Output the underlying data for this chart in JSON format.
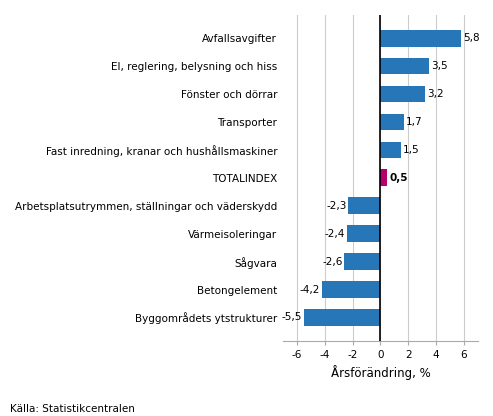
{
  "categories": [
    "Byggområdets ytstrukturer",
    "Betongelement",
    "Sågvara",
    "Värmeisoleringar",
    "Arbetsplatsutrymmen, ställningar och väderskydd",
    "TOTALINDEX",
    "Fast inredning, kranar och hushållsmaskiner",
    "Transporter",
    "Fönster och dörrar",
    "El, reglering, belysning och hiss",
    "Avfallsavgifter"
  ],
  "values": [
    -5.5,
    -4.2,
    -2.6,
    -2.4,
    -2.3,
    0.5,
    1.5,
    1.7,
    3.2,
    3.5,
    5.8
  ],
  "bar_colors": [
    "#2676b8",
    "#2676b8",
    "#2676b8",
    "#2676b8",
    "#2676b8",
    "#b5006e",
    "#2676b8",
    "#2676b8",
    "#2676b8",
    "#2676b8",
    "#2676b8"
  ],
  "xlabel": "Årsförändring, %",
  "xlim": [
    -7,
    7
  ],
  "xticks": [
    -6,
    -4,
    -2,
    0,
    2,
    4,
    6
  ],
  "source_text": "Källa: Statistikcentralen",
  "value_labels": [
    "-5,5",
    "-4,2",
    "-2,6",
    "-2,4",
    "-2,3",
    "0,5",
    "1,5",
    "1,7",
    "3,2",
    "3,5",
    "5,8"
  ],
  "grid_color": "#cccccc",
  "bar_height": 0.6,
  "background_color": "#ffffff",
  "axis_label_fontsize": 8.5,
  "tick_fontsize": 7.5,
  "value_label_fontsize": 7.5,
  "totalindex_idx": 5
}
